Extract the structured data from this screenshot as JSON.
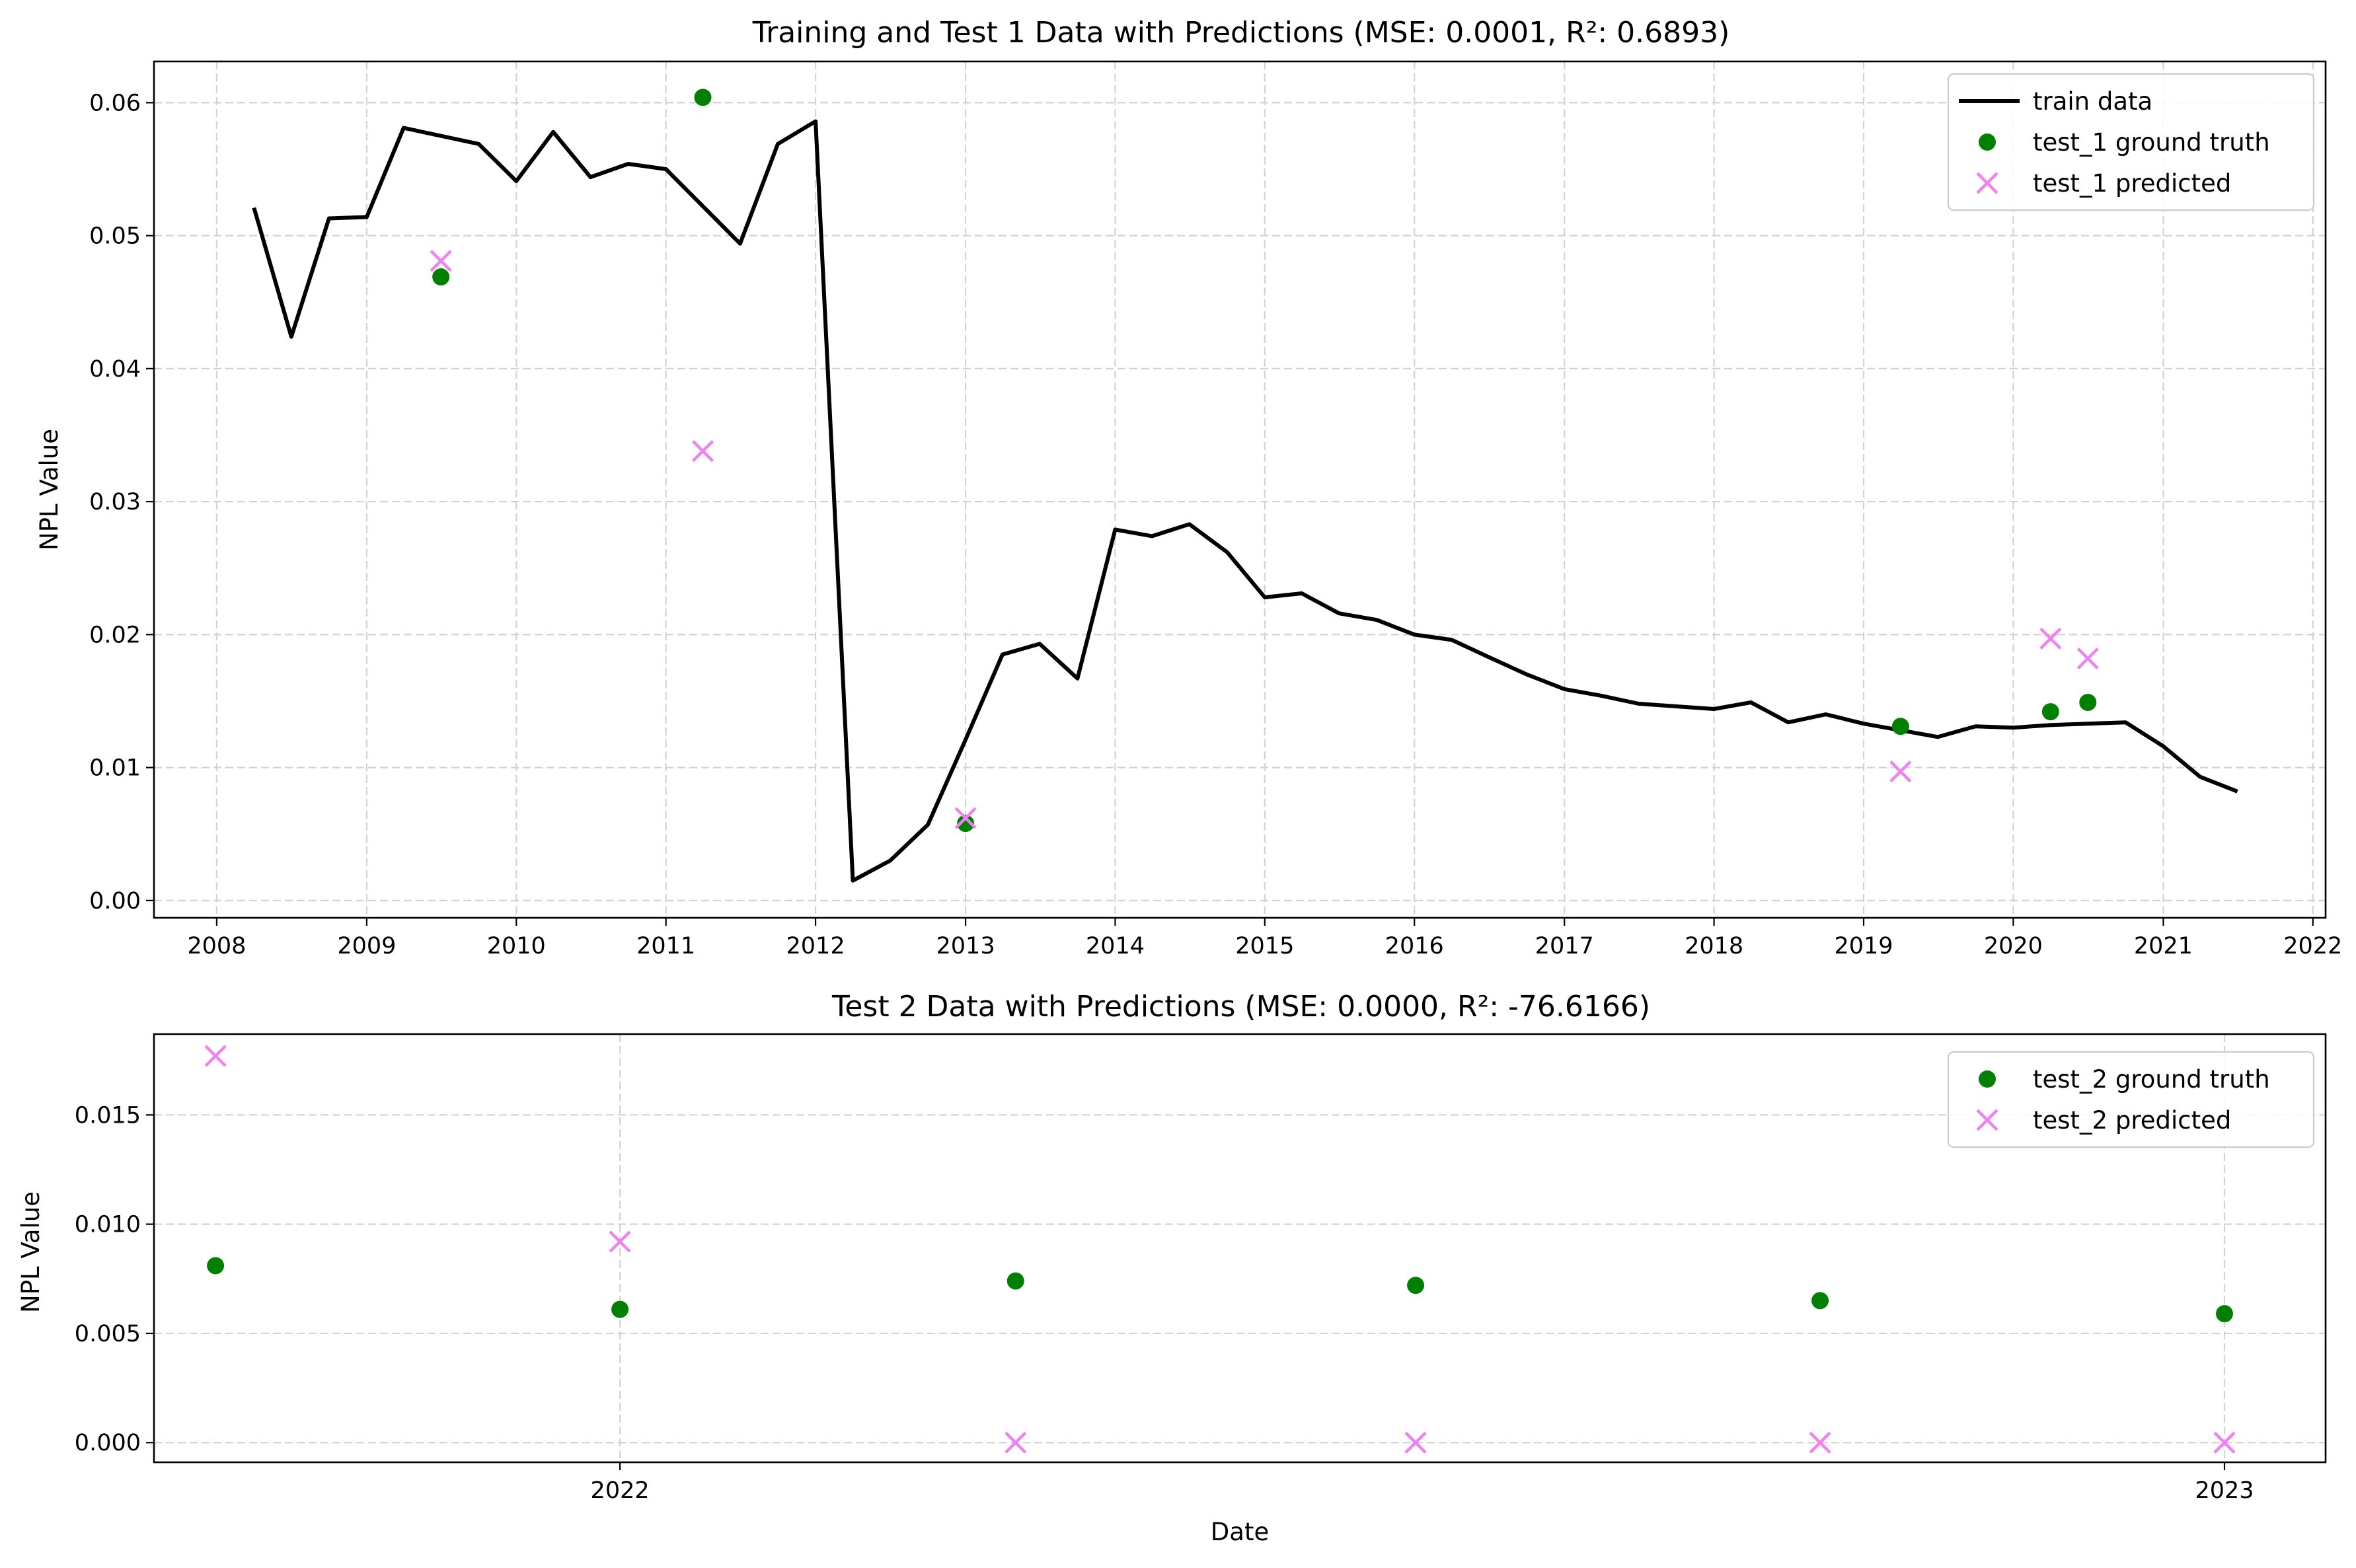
{
  "chart_data": [
    {
      "type": "line",
      "title": "Training and Test 1 Data with Predictions (MSE: 0.0001, R²: 0.6893)",
      "xlabel": "",
      "ylabel": "NPL Value",
      "xlim": [
        "2007-08-01",
        "2022-02-01"
      ],
      "ylim": [
        -0.0013,
        0.0631
      ],
      "x_ticks": [
        "2008-01-01",
        "2009-01-01",
        "2010-01-01",
        "2011-01-01",
        "2012-01-01",
        "2013-01-01",
        "2014-01-01",
        "2015-01-01",
        "2016-01-01",
        "2017-01-01",
        "2018-01-01",
        "2019-01-01",
        "2020-01-01",
        "2021-01-01",
        "2022-01-01"
      ],
      "x_tick_labels": [
        "2008",
        "2009",
        "2010",
        "2011",
        "2012",
        "2013",
        "2014",
        "2015",
        "2016",
        "2017",
        "2018",
        "2019",
        "2020",
        "2021",
        "2022"
      ],
      "y_ticks": [
        0.0,
        0.01,
        0.02,
        0.03,
        0.04,
        0.05,
        0.06
      ],
      "y_tick_labels": [
        "0.00",
        "0.01",
        "0.02",
        "0.03",
        "0.04",
        "0.05",
        "0.06"
      ],
      "grid": true,
      "legend_position": "upper right",
      "colors": {
        "train": "#000000",
        "truth": "#008000",
        "pred": "#ee82ee"
      },
      "series": [
        {
          "name": "train data",
          "kind": "line",
          "x": [
            "2008-04-01",
            "2008-07-01",
            "2008-10-01",
            "2009-01-01",
            "2009-04-01",
            "2009-10-01",
            "2010-01-01",
            "2010-04-01",
            "2010-07-01",
            "2010-10-01",
            "2011-01-01",
            "2011-07-01",
            "2011-10-01",
            "2012-01-01",
            "2012-04-01",
            "2012-07-01",
            "2012-10-01",
            "2013-01-01",
            "2013-04-01",
            "2013-07-01",
            "2013-10-01",
            "2014-01-01",
            "2014-04-01",
            "2014-07-01",
            "2014-10-01",
            "2015-01-01",
            "2015-04-01",
            "2015-07-01",
            "2015-10-01",
            "2016-01-01",
            "2016-04-01",
            "2016-07-01",
            "2016-10-01",
            "2017-01-01",
            "2017-04-01",
            "2017-07-01",
            "2017-10-01",
            "2018-01-01",
            "2018-04-01",
            "2018-07-01",
            "2018-10-01",
            "2019-01-01",
            "2019-04-01",
            "2019-07-01",
            "2019-10-01",
            "2020-01-01",
            "2020-04-01",
            "2020-07-01",
            "2020-10-01",
            "2021-01-01",
            "2021-04-01",
            "2021-07-01"
          ],
          "y": [
            0.0521,
            0.0424,
            0.0513,
            0.0514,
            0.0581,
            0.0569,
            0.0541,
            0.0578,
            0.0544,
            0.0554,
            0.055,
            0.0494,
            0.0569,
            0.0586,
            0.0015,
            0.003,
            0.0057,
            0.0121,
            0.0185,
            0.0193,
            0.0167,
            0.0279,
            0.0274,
            0.0283,
            0.0262,
            0.0228,
            0.0231,
            0.0216,
            0.0211,
            0.02,
            0.0196,
            0.0183,
            0.017,
            0.0159,
            0.0154,
            0.0148,
            0.0146,
            0.0144,
            0.0149,
            0.0134,
            0.014,
            0.0133,
            0.0128,
            0.0123,
            0.0131,
            0.013,
            0.0132,
            0.0133,
            0.0134,
            0.0116,
            0.0093,
            0.0082
          ]
        },
        {
          "name": "test_1 ground truth",
          "kind": "scatter-dot",
          "x": [
            "2009-07-01",
            "2011-04-01",
            "2013-01-01",
            "2019-04-01",
            "2020-04-01",
            "2020-07-01"
          ],
          "y": [
            0.0469,
            0.0604,
            0.0058,
            0.0131,
            0.0142,
            0.0149
          ]
        },
        {
          "name": "test_1 predicted",
          "kind": "scatter-x",
          "x": [
            "2009-07-01",
            "2011-04-01",
            "2013-01-01",
            "2019-04-01",
            "2020-04-01",
            "2020-07-01"
          ],
          "y": [
            0.0481,
            0.0338,
            0.0062,
            0.0097,
            0.0197,
            0.0182
          ]
        }
      ]
    },
    {
      "type": "scatter",
      "title": "Test 2 Data with Predictions (MSE: 0.0000, R²: -76.6166)",
      "xlabel": "Date",
      "ylabel": "NPL Value",
      "xlim": [
        "2021-09-17",
        "2023-01-24"
      ],
      "ylim": [
        -0.0009,
        0.0187
      ],
      "x_ticks": [
        "2022-01-01",
        "2023-01-01"
      ],
      "x_tick_labels": [
        "2022",
        "2023"
      ],
      "y_ticks": [
        0.0,
        0.005,
        0.01,
        0.015
      ],
      "y_tick_labels": [
        "0.000",
        "0.005",
        "0.010",
        "0.015"
      ],
      "grid": true,
      "legend_position": "upper right",
      "colors": {
        "truth": "#008000",
        "pred": "#ee82ee"
      },
      "series": [
        {
          "name": "test_2 ground truth",
          "kind": "scatter-dot",
          "x": [
            "2021-10-01",
            "2022-01-01",
            "2022-04-01",
            "2022-07-01",
            "2022-10-01",
            "2023-01-01"
          ],
          "y": [
            0.0081,
            0.0061,
            0.0074,
            0.0072,
            0.0065,
            0.0059
          ]
        },
        {
          "name": "test_2 predicted",
          "kind": "scatter-x",
          "x": [
            "2021-10-01",
            "2022-01-01",
            "2022-04-01",
            "2022-07-01",
            "2022-10-01",
            "2023-01-01"
          ],
          "y": [
            0.0177,
            0.0092,
            0.0,
            0.0,
            0.0,
            0.0
          ]
        }
      ]
    }
  ]
}
